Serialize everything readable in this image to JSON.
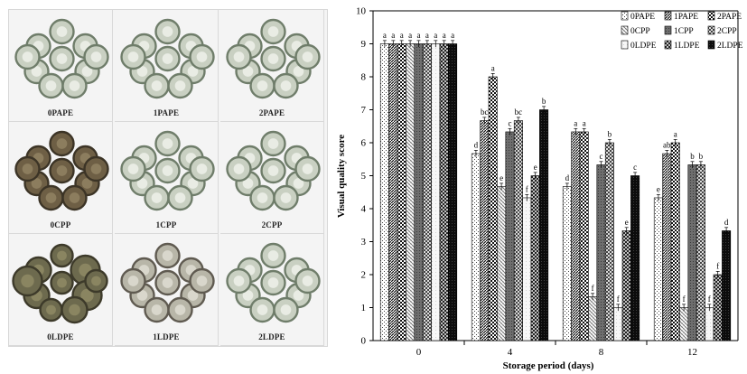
{
  "photos": {
    "cells": [
      {
        "label": "0PAPE",
        "state": "fresh"
      },
      {
        "label": "1PAPE",
        "state": "fresh"
      },
      {
        "label": "2PAPE",
        "state": "fresh"
      },
      {
        "label": "0CPP",
        "state": "browned"
      },
      {
        "label": "1CPP",
        "state": "fresh"
      },
      {
        "label": "2CPP",
        "state": "fresh"
      },
      {
        "label": "0LDPE",
        "state": "decayed"
      },
      {
        "label": "1LDPE",
        "state": "mild"
      },
      {
        "label": "2LDPE",
        "state": "fresh"
      }
    ]
  },
  "chart_data": {
    "type": "bar",
    "title": "",
    "xlabel": "Storage period (days)",
    "ylabel": "Visual quality score",
    "categories": [
      "0",
      "4",
      "8",
      "12"
    ],
    "ylim": [
      0,
      10
    ],
    "yticks": [
      "0",
      "1",
      "2",
      "3",
      "4",
      "5",
      "6",
      "7",
      "8",
      "9",
      "10"
    ],
    "grid": false,
    "legend_position": "top-right",
    "series": [
      {
        "name": "0PAPE",
        "pattern": "dots-light",
        "values": [
          9.0,
          5.67,
          4.67,
          4.33
        ],
        "errors": [
          0.1,
          0.1,
          0.1,
          0.1
        ],
        "letters": [
          "a",
          "d",
          "d",
          "e"
        ]
      },
      {
        "name": "1PAPE",
        "pattern": "diag-dense",
        "values": [
          9.0,
          6.67,
          6.33,
          5.67
        ],
        "errors": [
          0.1,
          0.1,
          0.1,
          0.1
        ],
        "letters": [
          "a",
          "bc",
          "a",
          "ab"
        ]
      },
      {
        "name": "2PAPE",
        "pattern": "checker",
        "values": [
          9.0,
          8.0,
          6.33,
          6.0
        ],
        "errors": [
          0.1,
          0.1,
          0.1,
          0.1
        ],
        "letters": [
          "a",
          "a",
          "a",
          "a"
        ]
      },
      {
        "name": "0CPP",
        "pattern": "diag-light",
        "values": [
          9.0,
          4.67,
          1.33,
          1.0
        ],
        "errors": [
          0.1,
          0.1,
          0.1,
          0.1
        ],
        "letters": [
          "a",
          "e",
          "f",
          "f"
        ]
      },
      {
        "name": "1CPP",
        "pattern": "dark-gray",
        "values": [
          9.0,
          6.33,
          5.33,
          5.33
        ],
        "errors": [
          0.1,
          0.1,
          0.1,
          0.1
        ],
        "letters": [
          "a",
          "c",
          "c",
          "b"
        ]
      },
      {
        "name": "2CPP",
        "pattern": "checker-mid",
        "values": [
          9.0,
          6.67,
          6.0,
          5.33
        ],
        "errors": [
          0.1,
          0.1,
          0.1,
          0.1
        ],
        "letters": [
          "a",
          "bc",
          "b",
          "b"
        ]
      },
      {
        "name": "0LDPE",
        "pattern": "light",
        "values": [
          9.0,
          4.33,
          1.0,
          1.0
        ],
        "errors": [
          0.1,
          0.1,
          0.1,
          0.1
        ],
        "letters": [
          "a",
          "f",
          "f",
          "f"
        ]
      },
      {
        "name": "1LDPE",
        "pattern": "diag-x",
        "values": [
          9.0,
          5.0,
          3.33,
          2.0
        ],
        "errors": [
          0.1,
          0.1,
          0.1,
          0.1
        ],
        "letters": [
          "a",
          "e",
          "e",
          "f"
        ]
      },
      {
        "name": "2LDPE",
        "pattern": "black",
        "values": [
          9.0,
          7.0,
          5.0,
          3.33
        ],
        "errors": [
          0.1,
          0.1,
          0.1,
          0.1
        ],
        "letters": [
          "a",
          "b",
          "c",
          "d"
        ]
      }
    ]
  }
}
